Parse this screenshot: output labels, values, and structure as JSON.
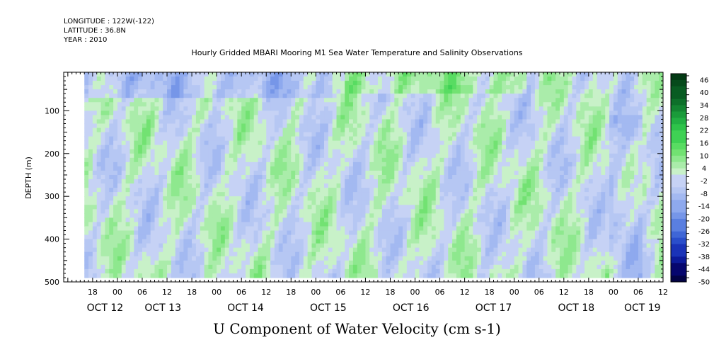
{
  "header": {
    "longitude": "LONGITUDE : 122W(-122)",
    "latitude": "LATITUDE : 36.8N",
    "year": "YEAR : 2010",
    "subtitle": "Hourly Gridded MBARI Mooring M1 Sea Water Temperature and Salinity Observations"
  },
  "footer": {
    "title": "U Component of Water Velocity (cm s-1)"
  },
  "chart_data": {
    "type": "heatmap",
    "title": "U Component of Water Velocity (cm s-1)",
    "subtitle": "Hourly Gridded MBARI Mooring M1 Sea Water Temperature and Salinity Observations",
    "xlabel": "",
    "ylabel": "DEPTH (m)",
    "y_reversed": true,
    "ylim": [
      500,
      10
    ],
    "y_ticks": [
      100,
      200,
      300,
      400,
      500
    ],
    "x_range_hours": [
      -7,
      138
    ],
    "hour_ticks": [
      {
        "h": 0,
        "label": "18"
      },
      {
        "h": 6,
        "label": "00"
      },
      {
        "h": 12,
        "label": "06"
      },
      {
        "h": 18,
        "label": "12"
      },
      {
        "h": 24,
        "label": "18"
      },
      {
        "h": 30,
        "label": "00"
      },
      {
        "h": 36,
        "label": "06"
      },
      {
        "h": 42,
        "label": "12"
      },
      {
        "h": 48,
        "label": "18"
      },
      {
        "h": 54,
        "label": "00"
      },
      {
        "h": 60,
        "label": "06"
      },
      {
        "h": 66,
        "label": "12"
      },
      {
        "h": 72,
        "label": "18"
      },
      {
        "h": 78,
        "label": "00"
      },
      {
        "h": 84,
        "label": "06"
      },
      {
        "h": 90,
        "label": "12"
      },
      {
        "h": 96,
        "label": "18"
      },
      {
        "h": 102,
        "label": "00"
      },
      {
        "h": 108,
        "label": "06"
      },
      {
        "h": 114,
        "label": "12"
      },
      {
        "h": 120,
        "label": "18"
      },
      {
        "h": 126,
        "label": "00"
      },
      {
        "h": 132,
        "label": "06"
      },
      {
        "h": 138,
        "label": "12"
      }
    ],
    "date_labels": [
      {
        "h": 3,
        "label": "OCT 12"
      },
      {
        "h": 17,
        "label": "OCT 13"
      },
      {
        "h": 37,
        "label": "OCT 14"
      },
      {
        "h": 57,
        "label": "OCT 15"
      },
      {
        "h": 77,
        "label": "OCT 16"
      },
      {
        "h": 97,
        "label": "OCT 17"
      },
      {
        "h": 117,
        "label": "OCT 18"
      },
      {
        "h": 133,
        "label": "OCT 19"
      }
    ],
    "data_extent": {
      "x_hours": [
        -2,
        138
      ],
      "depth": [
        10,
        490
      ]
    },
    "colorbar": {
      "min": -50,
      "max": 49,
      "step": 3,
      "labels": [
        "46",
        "40",
        "34",
        "28",
        "22",
        "16",
        "10",
        "4",
        "-2",
        "-8",
        "-14",
        "-20",
        "-26",
        "-32",
        "-38",
        "-44",
        "-50"
      ],
      "neg_colors": [
        "#030346",
        "#06066e",
        "#0c1a9a",
        "#1a33b8",
        "#2a4ecb",
        "#3f66d6",
        "#5a7fe0",
        "#7696e8",
        "#8ea9ee",
        "#a3b9f1",
        "#b6c7f3",
        "#c6d2f5"
      ],
      "pos_colors": [
        "#c8f1c8",
        "#aaecaa",
        "#8ee88e",
        "#72e272",
        "#58dc62",
        "#3fd154",
        "#2ec34a",
        "#22b043",
        "#1a9b3a",
        "#148532",
        "#0e702a",
        "#095c22",
        "#064a1b",
        "#033a14"
      ]
    },
    "grid": false
  }
}
